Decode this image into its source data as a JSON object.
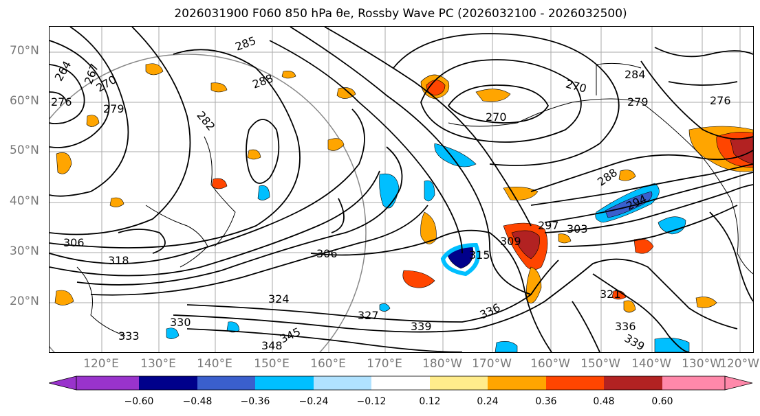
{
  "title": "2026031900 F060 850 hPa θe, Rossby Wave PC (2026032100 - 2026032500)",
  "lat_labels": [
    "70°N",
    "60°N",
    "50°N",
    "40°N",
    "30°N",
    "20°N"
  ],
  "lon_labels": [
    "120°E",
    "130°E",
    "140°E",
    "150°E",
    "160°E",
    "170°E",
    "180°W",
    "170°W",
    "160°W",
    "150°W",
    "140°W",
    "130°W",
    "120°W"
  ],
  "contour_labels": [
    "264",
    "267",
    "270",
    "276",
    "279",
    "285",
    "288",
    "282",
    "270",
    "270",
    "284",
    "279",
    "276",
    "288",
    "294",
    "297",
    "303",
    "306",
    "309",
    "315",
    "306",
    "318",
    "324",
    "327",
    "330",
    "333",
    "336",
    "339",
    "345",
    "348",
    "336",
    "339",
    "321"
  ],
  "colorbar": {
    "ticks": [
      "−0.60",
      "−0.48",
      "−0.36",
      "−0.24",
      "−0.12",
      "0.12",
      "0.24",
      "0.36",
      "0.48",
      "0.60"
    ],
    "colors": [
      "#9933cc",
      "#00008b",
      "#3a5fcd",
      "#00bfff",
      "#b0e2ff",
      "#ffffff",
      "#ffec8b",
      "#ffa500",
      "#ff4500",
      "#b22222",
      "#ff88aa",
      "#ff88aa"
    ]
  }
}
